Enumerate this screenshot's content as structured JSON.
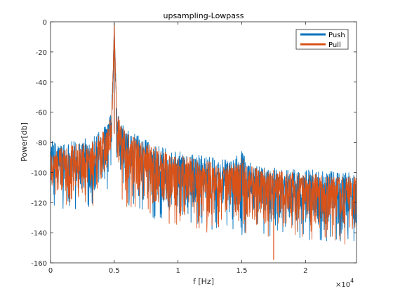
{
  "chart_data": {
    "type": "line",
    "title": "upsampling-Lowpass",
    "xlabel": "f [Hz]",
    "ylabel": "Power[db]",
    "x_exponent_label": "×10",
    "x_exponent_power": "4",
    "xlim": [
      0,
      24000
    ],
    "ylim": [
      -160,
      0
    ],
    "x_ticks": [
      0,
      5000,
      10000,
      15000,
      20000
    ],
    "x_tick_labels": [
      "0",
      "0.5",
      "1",
      "1.5",
      "2"
    ],
    "y_ticks": [
      0,
      -20,
      -40,
      -60,
      -80,
      -100,
      -120,
      -140,
      -160
    ],
    "y_tick_labels": [
      "0",
      "-20",
      "-40",
      "-60",
      "-80",
      "-100",
      "-120",
      "-140",
      "-160"
    ],
    "grid": false,
    "legend_position": "top-right",
    "series": [
      {
        "name": "Push",
        "color": "#0072BD",
        "x": [
          0,
          500,
          1000,
          2000,
          3000,
          4000,
          4500,
          4800,
          5000,
          5200,
          5500,
          6000,
          7000,
          8000,
          9000,
          10000,
          12000,
          14000,
          15000,
          16000,
          18000,
          20000,
          22000,
          24000
        ],
        "upper": [
          -78,
          -80,
          -80,
          -79,
          -77,
          -72,
          -66,
          -58,
          0,
          -58,
          -66,
          -72,
          -76,
          -80,
          -84,
          -86,
          -89,
          -92,
          -86,
          -95,
          -97,
          -98,
          -99,
          -100
        ],
        "lower": [
          -116,
          -118,
          -120,
          -120,
          -118,
          -114,
          -106,
          -96,
          -3,
          -96,
          -108,
          -117,
          -122,
          -125,
          -128,
          -130,
          -133,
          -135,
          -136,
          -137,
          -138,
          -139,
          -140,
          -141
        ],
        "mean": [
          -95,
          -97,
          -98,
          -98,
          -96,
          -92,
          -86,
          -78,
          -1,
          -78,
          -86,
          -92,
          -96,
          -99,
          -102,
          -104,
          -107,
          -110,
          -110,
          -113,
          -114,
          -115,
          -116,
          -117
        ]
      },
      {
        "name": "Pull",
        "color": "#D95319",
        "x": [
          0,
          500,
          1000,
          2000,
          3000,
          4000,
          4500,
          4800,
          5000,
          5200,
          5500,
          6000,
          7000,
          8000,
          9000,
          10000,
          12000,
          14000,
          15000,
          16000,
          18000,
          20000,
          22000,
          24000
        ],
        "upper": [
          -84,
          -84,
          -83,
          -81,
          -79,
          -74,
          -68,
          -60,
          0,
          -60,
          -68,
          -74,
          -79,
          -82,
          -86,
          -88,
          -92,
          -95,
          -90,
          -97,
          -99,
          -101,
          -102,
          -103
        ],
        "lower": [
          -118,
          -120,
          -121,
          -121,
          -119,
          -115,
          -107,
          -98,
          -4,
          -98,
          -110,
          -118,
          -123,
          -126,
          -129,
          -131,
          -134,
          -136,
          -137,
          -138,
          -139,
          -140,
          -141,
          -142
        ],
        "mean": [
          -100,
          -101,
          -101,
          -100,
          -98,
          -94,
          -88,
          -80,
          -2,
          -80,
          -88,
          -94,
          -98,
          -102,
          -105,
          -107,
          -110,
          -113,
          -113,
          -115,
          -116,
          -117,
          -118,
          -119
        ]
      }
    ],
    "annotations": [
      {
        "x": 17500,
        "y": -158,
        "series": "Pull",
        "kind": "deep-dip"
      }
    ]
  }
}
